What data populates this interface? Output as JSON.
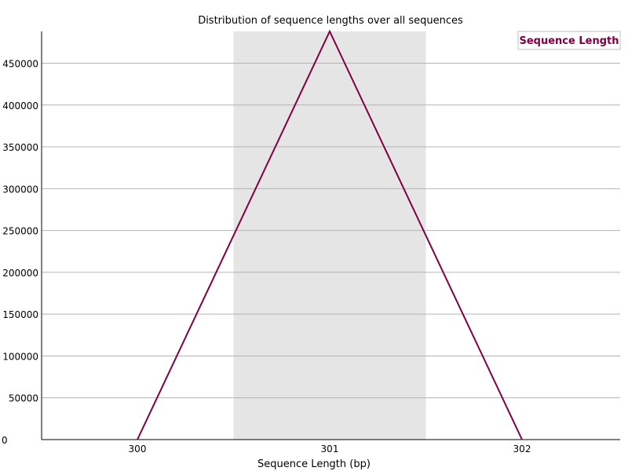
{
  "chart_data": {
    "type": "line",
    "title": "Distribution of sequence lengths over all sequences",
    "xlabel": "Sequence Length (bp)",
    "ylabel": "",
    "categories": [
      "300",
      "301",
      "302"
    ],
    "ylim": [
      0,
      488000
    ],
    "yticks": [
      0,
      50000,
      100000,
      150000,
      200000,
      250000,
      300000,
      350000,
      400000,
      450000
    ],
    "ytick_labels": [
      "0",
      "50000",
      "100000",
      "150000",
      "200000",
      "250000",
      "300000",
      "350000",
      "400000",
      "450000"
    ],
    "series": [
      {
        "name": "Sequence Length",
        "values": [
          0,
          488000,
          0
        ]
      }
    ],
    "highlight_band": {
      "from_category": "301"
    },
    "grid": true,
    "legend_position": "top-right",
    "colors": {
      "series": "#800040",
      "highlight": "#e5e5e5",
      "grid": "#b4b4b4",
      "axis": "#000000"
    }
  }
}
